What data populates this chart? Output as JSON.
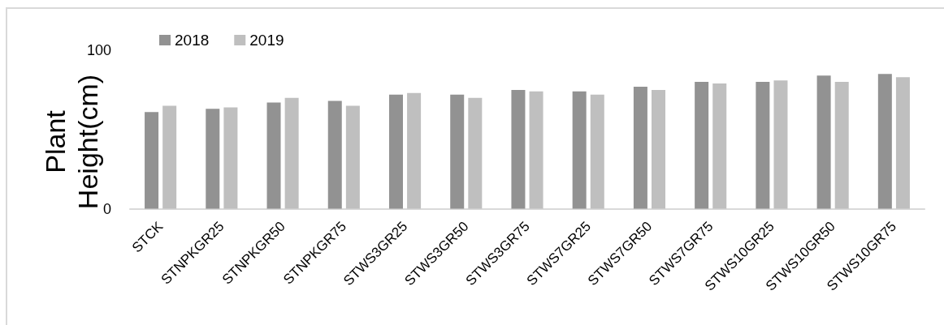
{
  "chart_data": {
    "type": "bar",
    "ylabel": "Plant Height(cm)",
    "categories": [
      "STCK",
      "STNPKGR25",
      "STNPKGR50",
      "STNPKGR75",
      "STWS3GR25",
      "STWS3GR50",
      "STWS3GR75",
      "STWS7GR25",
      "STWS7GR50",
      "STWS7GR75",
      "STWS10GR25",
      "STWS10GR50",
      "STWS10GR75"
    ],
    "series": [
      {
        "name": "2018",
        "color": "#929292",
        "values": [
          61,
          63,
          67,
          68,
          72,
          72,
          75,
          74,
          77,
          80,
          80,
          84,
          85
        ]
      },
      {
        "name": "2019",
        "color": "#bfbfbf",
        "values": [
          65,
          64,
          70,
          65,
          73,
          70,
          74,
          72,
          75,
          79,
          81,
          80,
          83
        ]
      }
    ],
    "ylim": [
      0,
      100
    ],
    "yticks": [
      0,
      100
    ],
    "grid": false,
    "legend": "top left"
  }
}
